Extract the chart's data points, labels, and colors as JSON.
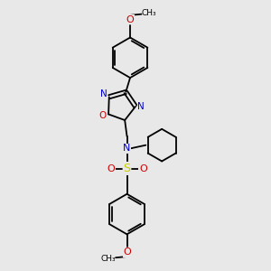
{
  "bg_color": "#e8e8e8",
  "bond_color": "#000000",
  "N_color": "#0000cc",
  "O_color": "#cc0000",
  "S_color": "#cccc00",
  "text_color": "#000000",
  "figsize": [
    3.0,
    3.0
  ],
  "dpi": 100,
  "xlim": [
    0,
    10
  ],
  "ylim": [
    0,
    10
  ]
}
